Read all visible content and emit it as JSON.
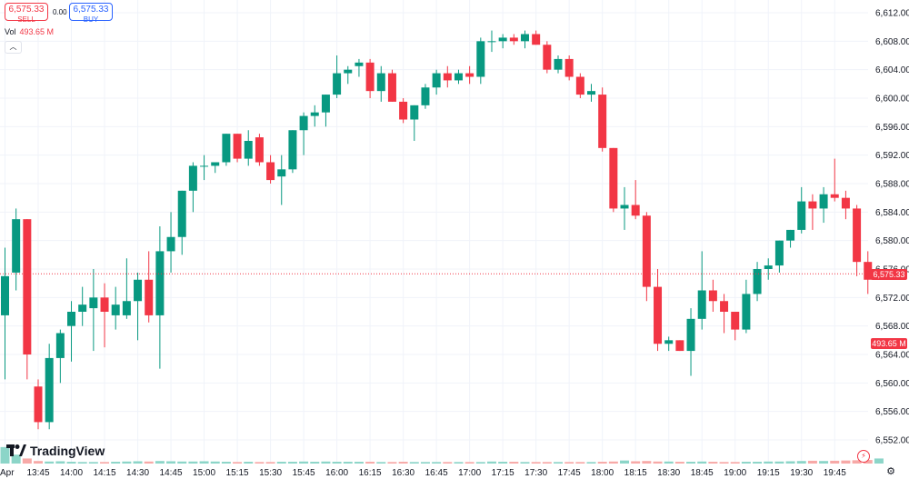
{
  "trade": {
    "sell_price": "6,575.33",
    "sell_label": "SELL",
    "spread": "0.00",
    "buy_price": "6,575.33",
    "buy_label": "BUY"
  },
  "volume_legend": {
    "label": "Vol",
    "value": "493.65 M"
  },
  "price_tags": {
    "current": "6,575.33",
    "volume": "493.65 M"
  },
  "brand": {
    "name": "TradingView"
  },
  "icons": {
    "collapse": "chevron-up-icon",
    "bolt": "bolt-icon",
    "settings": "gear-icon"
  },
  "colors": {
    "up": "#089981",
    "down": "#f23645",
    "up_volume": "#8cd5c8",
    "down_volume": "#f7a9a7",
    "last_price_line": "#f23645"
  },
  "chart_data": {
    "type": "candlestick",
    "interval_minutes": 5,
    "y_axis_ticks": [
      "6,612.00",
      "6,608.00",
      "6,604.00",
      "6,600.00",
      "6,596.00",
      "6,592.00",
      "6,588.00",
      "6,584.00",
      "6,580.00",
      "6,576.00",
      "6,572.00",
      "6,568.00",
      "6,564.00",
      "6,560.00",
      "6,556.00",
      "6,552.00"
    ],
    "ylim": [
      6550,
      6613
    ],
    "x_axis_ticks": [
      {
        "label": "Apr",
        "time": "13:30"
      },
      {
        "label": "13:45",
        "time": "13:45"
      },
      {
        "label": "14:00",
        "time": "14:00"
      },
      {
        "label": "14:15",
        "time": "14:15"
      },
      {
        "label": "14:30",
        "time": "14:30"
      },
      {
        "label": "14:45",
        "time": "14:45"
      },
      {
        "label": "15:00",
        "time": "15:00"
      },
      {
        "label": "15:15",
        "time": "15:15"
      },
      {
        "label": "15:30",
        "time": "15:30"
      },
      {
        "label": "15:45",
        "time": "15:45"
      },
      {
        "label": "16:00",
        "time": "16:00"
      },
      {
        "label": "16:15",
        "time": "16:15"
      },
      {
        "label": "16:30",
        "time": "16:30"
      },
      {
        "label": "16:45",
        "time": "16:45"
      },
      {
        "label": "17:00",
        "time": "17:00"
      },
      {
        "label": "17:15",
        "time": "17:15"
      },
      {
        "label": "17:30",
        "time": "17:30"
      },
      {
        "label": "17:45",
        "time": "17:45"
      },
      {
        "label": "18:00",
        "time": "18:00"
      },
      {
        "label": "18:15",
        "time": "18:15"
      },
      {
        "label": "18:30",
        "time": "18:30"
      },
      {
        "label": "18:45",
        "time": "18:45"
      },
      {
        "label": "19:00",
        "time": "19:00"
      },
      {
        "label": "19:15",
        "time": "19:15"
      },
      {
        "label": "19:30",
        "time": "19:30"
      },
      {
        "label": "19:45",
        "time": "19:45"
      }
    ],
    "last_price": 6575.33,
    "ohlc": [
      {
        "t": "13:30",
        "o": 6569.5,
        "h": 6579.0,
        "l": 6560.5,
        "c": 6575.0
      },
      {
        "t": "13:35",
        "o": 6575.5,
        "h": 6584.5,
        "l": 6573.0,
        "c": 6583.0
      },
      {
        "t": "13:40",
        "o": 6583.0,
        "h": 6583.0,
        "l": 6560.5,
        "c": 6564.0
      },
      {
        "t": "13:45",
        "o": 6559.5,
        "h": 6560.5,
        "l": 6553.5,
        "c": 6554.5
      },
      {
        "t": "13:50",
        "o": 6554.5,
        "h": 6565.5,
        "l": 6553.5,
        "c": 6563.5
      },
      {
        "t": "13:55",
        "o": 6563.5,
        "h": 6567.5,
        "l": 6560.0,
        "c": 6567.0
      },
      {
        "t": "14:00",
        "o": 6568.0,
        "h": 6571.5,
        "l": 6563.0,
        "c": 6570.0
      },
      {
        "t": "14:05",
        "o": 6570.0,
        "h": 6573.5,
        "l": 6568.0,
        "c": 6571.0
      },
      {
        "t": "14:10",
        "o": 6570.5,
        "h": 6576.0,
        "l": 6564.5,
        "c": 6572.0
      },
      {
        "t": "14:15",
        "o": 6572.0,
        "h": 6574.0,
        "l": 6565.0,
        "c": 6570.0
      },
      {
        "t": "14:20",
        "o": 6569.5,
        "h": 6573.5,
        "l": 6567.5,
        "c": 6571.0
      },
      {
        "t": "14:25",
        "o": 6569.5,
        "h": 6577.5,
        "l": 6569.0,
        "c": 6571.5
      },
      {
        "t": "14:30",
        "o": 6571.5,
        "h": 6575.5,
        "l": 6566.0,
        "c": 6574.5
      },
      {
        "t": "14:35",
        "o": 6574.5,
        "h": 6578.5,
        "l": 6568.5,
        "c": 6569.5
      },
      {
        "t": "14:40",
        "o": 6569.5,
        "h": 6582.0,
        "l": 6562.0,
        "c": 6578.5
      },
      {
        "t": "14:45",
        "o": 6578.5,
        "h": 6584.0,
        "l": 6575.5,
        "c": 6580.5
      },
      {
        "t": "14:50",
        "o": 6580.5,
        "h": 6587.0,
        "l": 6578.0,
        "c": 6587.0
      },
      {
        "t": "14:55",
        "o": 6587.0,
        "h": 6591.0,
        "l": 6584.0,
        "c": 6590.5
      },
      {
        "t": "15:00",
        "o": 6590.5,
        "h": 6592.0,
        "l": 6588.5,
        "c": 6590.5
      },
      {
        "t": "15:05",
        "o": 6590.5,
        "h": 6591.0,
        "l": 6589.5,
        "c": 6591.0
      },
      {
        "t": "15:10",
        "o": 6591.0,
        "h": 6595.0,
        "l": 6590.5,
        "c": 6595.0
      },
      {
        "t": "15:15",
        "o": 6595.0,
        "h": 6595.0,
        "l": 6591.0,
        "c": 6591.5
      },
      {
        "t": "15:20",
        "o": 6591.5,
        "h": 6595.5,
        "l": 6590.5,
        "c": 6594.0
      },
      {
        "t": "15:25",
        "o": 6594.5,
        "h": 6595.0,
        "l": 6590.5,
        "c": 6591.0
      },
      {
        "t": "15:30",
        "o": 6591.0,
        "h": 6592.0,
        "l": 6588.0,
        "c": 6588.5
      },
      {
        "t": "15:35",
        "o": 6589.0,
        "h": 6592.0,
        "l": 6585.0,
        "c": 6590.0
      },
      {
        "t": "15:40",
        "o": 6590.0,
        "h": 6595.5,
        "l": 6589.5,
        "c": 6595.5
      },
      {
        "t": "15:45",
        "o": 6595.5,
        "h": 6598.0,
        "l": 6592.0,
        "c": 6597.5
      },
      {
        "t": "15:50",
        "o": 6597.5,
        "h": 6599.0,
        "l": 6596.0,
        "c": 6598.0
      },
      {
        "t": "15:55",
        "o": 6598.0,
        "h": 6600.5,
        "l": 6596.0,
        "c": 6600.5
      },
      {
        "t": "16:00",
        "o": 6600.5,
        "h": 6606.0,
        "l": 6600.0,
        "c": 6603.5
      },
      {
        "t": "16:05",
        "o": 6603.5,
        "h": 6604.5,
        "l": 6602.0,
        "c": 6604.0
      },
      {
        "t": "16:10",
        "o": 6604.5,
        "h": 6605.5,
        "l": 6603.0,
        "c": 6605.0
      },
      {
        "t": "16:15",
        "o": 6605.0,
        "h": 6605.5,
        "l": 6600.0,
        "c": 6601.0
      },
      {
        "t": "16:20",
        "o": 6601.0,
        "h": 6604.5,
        "l": 6599.5,
        "c": 6603.5
      },
      {
        "t": "16:25",
        "o": 6603.5,
        "h": 6604.0,
        "l": 6599.5,
        "c": 6599.5
      },
      {
        "t": "16:30",
        "o": 6599.5,
        "h": 6600.0,
        "l": 6596.5,
        "c": 6597.0
      },
      {
        "t": "16:35",
        "o": 6597.0,
        "h": 6599.0,
        "l": 6594.0,
        "c": 6599.0
      },
      {
        "t": "16:40",
        "o": 6599.0,
        "h": 6602.0,
        "l": 6598.5,
        "c": 6601.5
      },
      {
        "t": "16:45",
        "o": 6601.5,
        "h": 6604.0,
        "l": 6600.5,
        "c": 6603.5
      },
      {
        "t": "16:50",
        "o": 6603.5,
        "h": 6604.5,
        "l": 6601.5,
        "c": 6602.5
      },
      {
        "t": "16:55",
        "o": 6602.5,
        "h": 6604.0,
        "l": 6602.0,
        "c": 6603.5
      },
      {
        "t": "17:00",
        "o": 6603.5,
        "h": 6604.5,
        "l": 6602.0,
        "c": 6603.0
      },
      {
        "t": "17:05",
        "o": 6603.0,
        "h": 6608.5,
        "l": 6602.0,
        "c": 6608.0
      },
      {
        "t": "17:10",
        "o": 6608.0,
        "h": 6609.5,
        "l": 6606.5,
        "c": 6608.0
      },
      {
        "t": "17:15",
        "o": 6608.0,
        "h": 6609.0,
        "l": 6607.0,
        "c": 6608.5
      },
      {
        "t": "17:20",
        "o": 6608.5,
        "h": 6609.0,
        "l": 6607.5,
        "c": 6608.0
      },
      {
        "t": "17:25",
        "o": 6608.0,
        "h": 6609.5,
        "l": 6607.0,
        "c": 6609.0
      },
      {
        "t": "17:30",
        "o": 6609.0,
        "h": 6609.5,
        "l": 6607.5,
        "c": 6607.5
      },
      {
        "t": "17:35",
        "o": 6607.5,
        "h": 6608.0,
        "l": 6603.5,
        "c": 6604.0
      },
      {
        "t": "17:40",
        "o": 6604.0,
        "h": 6606.0,
        "l": 6603.5,
        "c": 6605.5
      },
      {
        "t": "17:45",
        "o": 6605.5,
        "h": 6606.0,
        "l": 6602.5,
        "c": 6603.0
      },
      {
        "t": "17:50",
        "o": 6603.0,
        "h": 6603.5,
        "l": 6600.0,
        "c": 6600.5
      },
      {
        "t": "17:55",
        "o": 6600.5,
        "h": 6602.0,
        "l": 6599.5,
        "c": 6601.0
      },
      {
        "t": "18:00",
        "o": 6600.5,
        "h": 6601.5,
        "l": 6592.5,
        "c": 6593.0
      },
      {
        "t": "18:05",
        "o": 6593.0,
        "h": 6593.0,
        "l": 6584.0,
        "c": 6584.5
      },
      {
        "t": "18:10",
        "o": 6584.5,
        "h": 6587.5,
        "l": 6581.5,
        "c": 6585.0
      },
      {
        "t": "18:15",
        "o": 6585.0,
        "h": 6588.5,
        "l": 6583.0,
        "c": 6583.5
      },
      {
        "t": "18:20",
        "o": 6583.5,
        "h": 6584.0,
        "l": 6571.5,
        "c": 6573.5
      },
      {
        "t": "18:25",
        "o": 6573.5,
        "h": 6576.0,
        "l": 6564.5,
        "c": 6565.5
      },
      {
        "t": "18:30",
        "o": 6565.5,
        "h": 6566.5,
        "l": 6564.5,
        "c": 6566.0
      },
      {
        "t": "18:35",
        "o": 6566.0,
        "h": 6566.0,
        "l": 6564.5,
        "c": 6564.5
      },
      {
        "t": "18:40",
        "o": 6564.5,
        "h": 6570.5,
        "l": 6561.0,
        "c": 6569.0
      },
      {
        "t": "18:45",
        "o": 6569.0,
        "h": 6578.5,
        "l": 6567.5,
        "c": 6573.0
      },
      {
        "t": "18:50",
        "o": 6573.0,
        "h": 6574.5,
        "l": 6570.0,
        "c": 6571.5
      },
      {
        "t": "18:55",
        "o": 6571.5,
        "h": 6572.5,
        "l": 6567.0,
        "c": 6570.0
      },
      {
        "t": "19:00",
        "o": 6570.0,
        "h": 6570.0,
        "l": 6566.0,
        "c": 6567.5
      },
      {
        "t": "19:05",
        "o": 6567.5,
        "h": 6574.5,
        "l": 6567.0,
        "c": 6572.5
      },
      {
        "t": "19:10",
        "o": 6572.5,
        "h": 6577.0,
        "l": 6571.5,
        "c": 6576.0
      },
      {
        "t": "19:15",
        "o": 6576.0,
        "h": 6577.5,
        "l": 6574.5,
        "c": 6576.5
      },
      {
        "t": "19:20",
        "o": 6576.5,
        "h": 6580.0,
        "l": 6575.5,
        "c": 6580.0
      },
      {
        "t": "19:25",
        "o": 6580.0,
        "h": 6581.5,
        "l": 6579.0,
        "c": 6581.5
      },
      {
        "t": "19:30",
        "o": 6581.5,
        "h": 6587.5,
        "l": 6581.0,
        "c": 6585.5
      },
      {
        "t": "19:35",
        "o": 6585.5,
        "h": 6586.5,
        "l": 6581.5,
        "c": 6584.5
      },
      {
        "t": "19:40",
        "o": 6584.5,
        "h": 6587.5,
        "l": 6582.5,
        "c": 6586.5
      },
      {
        "t": "19:45",
        "o": 6586.5,
        "h": 6591.5,
        "l": 6585.5,
        "c": 6586.0
      },
      {
        "t": "19:50",
        "o": 6586.0,
        "h": 6587.0,
        "l": 6583.0,
        "c": 6584.5
      },
      {
        "t": "19:55",
        "o": 6584.5,
        "h": 6585.0,
        "l": 6575.0,
        "c": 6577.0
      },
      {
        "t": "20:00",
        "o": 6577.0,
        "h": 6578.5,
        "l": 6572.5,
        "c": 6574.5
      },
      {
        "t": "20:05",
        "o": 6575.33,
        "h": 6575.4,
        "l": 6575.3,
        "c": 6575.33
      }
    ],
    "volume_unit": "M",
    "volumes": [
      65,
      35,
      20,
      10,
      8,
      9,
      7,
      6,
      6,
      6,
      7,
      8,
      9,
      8,
      10,
      9,
      8,
      8,
      9,
      8,
      7,
      6,
      7,
      6,
      6,
      7,
      7,
      8,
      7,
      8,
      7,
      7,
      7,
      7,
      6,
      6,
      7,
      6,
      6,
      6,
      6,
      6,
      6,
      6,
      8,
      7,
      7,
      6,
      6,
      6,
      6,
      6,
      6,
      6,
      7,
      8,
      12,
      9,
      10,
      8,
      8,
      7,
      7,
      8,
      7,
      6,
      6,
      7,
      7,
      8,
      8,
      9,
      10,
      11,
      10,
      11,
      12,
      13,
      14,
      20,
      60,
      493.65
    ],
    "volume_ylim": [
      0,
      520
    ]
  }
}
